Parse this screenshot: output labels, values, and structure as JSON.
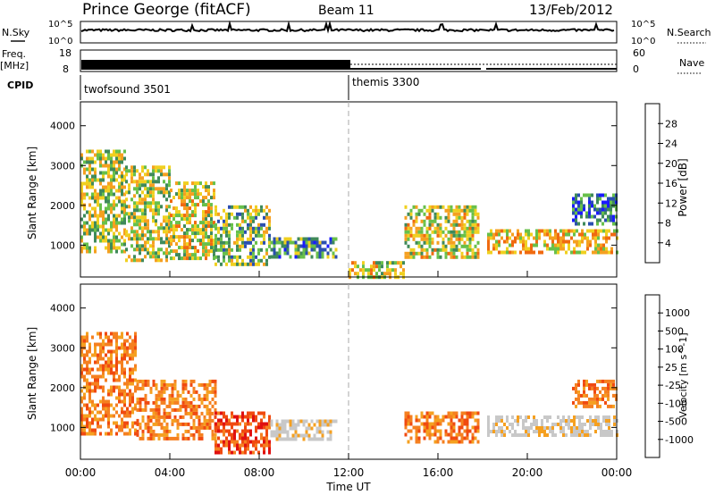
{
  "header": {
    "station": "Prince George (fitACF)",
    "beam": "Beam 11",
    "date": "13/Feb/2012"
  },
  "strip_labels": {
    "nsky": "N.Sky",
    "nsky_ticks": [
      "10^5",
      "10^0"
    ],
    "nsearch": "N.Search",
    "nsearch_ticks": [
      "10^5",
      "10^0"
    ],
    "freq": "Freq.",
    "freq_unit": "[MHz]",
    "freq_ticks": [
      "18",
      "8"
    ],
    "nave": "Nave",
    "nave_ticks": [
      "60",
      "0"
    ],
    "cpid": "CPID"
  },
  "cpid_segments": [
    {
      "label": "twofsound 3501",
      "start_hour": 0
    },
    {
      "label": "themis 3300",
      "start_hour": 12
    }
  ],
  "colors": {
    "power": [
      "#1a1aff",
      "#2a4fb0",
      "#3f8a5a",
      "#68c04a",
      "#f0d020",
      "#f5a020",
      "#f06a10",
      "#e01010"
    ],
    "velocity": [
      "#e01010",
      "#f04a10",
      "#f58020",
      "#f5a020",
      "#c8c8c8",
      "#c8c8c8",
      "#68c04a",
      "#3a9a50",
      "#2a5ab0",
      "#1a3aa0"
    ]
  },
  "chart_data": [
    {
      "type": "heatmap",
      "title": "Power",
      "xlabel": "Time UT",
      "ylabel": "Slant Range [km]",
      "xlim": [
        0,
        24
      ],
      "ylim": [
        200,
        4600
      ],
      "x_ticks": [
        "00:00",
        "04:00",
        "08:00",
        "12:00",
        "16:00",
        "20:00",
        "00:00"
      ],
      "y_ticks": [
        1000,
        2000,
        3000,
        4000
      ],
      "colorbar_label": "Power [dB]",
      "colorbar_ticks": [
        "4",
        "8",
        "12",
        "16",
        "20",
        "24",
        "28"
      ],
      "colorbar_range": [
        0,
        32
      ],
      "data_gap_hours": [
        17.8,
        18.2
      ],
      "regions": [
        {
          "t": [
            0.0,
            2.0
          ],
          "r": [
            800,
            3400
          ],
          "v": 18
        },
        {
          "t": [
            2.0,
            4.0
          ],
          "r": [
            600,
            3000
          ],
          "v": 18
        },
        {
          "t": [
            4.0,
            6.0
          ],
          "r": [
            700,
            2600
          ],
          "v": 20
        },
        {
          "t": [
            6.0,
            8.5
          ],
          "r": [
            500,
            2000
          ],
          "v": 16
        },
        {
          "t": [
            8.5,
            11.5
          ],
          "r": [
            700,
            1200
          ],
          "v": 12
        },
        {
          "t": [
            12.0,
            14.5
          ],
          "r": [
            200,
            600
          ],
          "v": 20
        },
        {
          "t": [
            14.5,
            17.8
          ],
          "r": [
            700,
            2000
          ],
          "v": 20
        },
        {
          "t": [
            18.2,
            24.0
          ],
          "r": [
            800,
            1400
          ],
          "v": 22
        },
        {
          "t": [
            22.0,
            24.0
          ],
          "r": [
            1500,
            2300
          ],
          "v": 10
        }
      ]
    },
    {
      "type": "heatmap",
      "title": "Velocity",
      "xlabel": "Time UT",
      "ylabel": "Slant Range [km]",
      "xlim": [
        0,
        24
      ],
      "ylim": [
        200,
        4600
      ],
      "x_ticks": [
        "00:00",
        "04:00",
        "08:00",
        "12:00",
        "16:00",
        "20:00",
        "00:00"
      ],
      "y_ticks": [
        1000,
        2000,
        3000,
        4000
      ],
      "colorbar_label": "Velocity [m s^-1]",
      "colorbar_ticks": [
        "1000",
        "500",
        "100",
        "25",
        "-25",
        "-100",
        "-500",
        "-1000"
      ],
      "regions": [
        {
          "t": [
            0.0,
            2.5
          ],
          "r": [
            800,
            3400
          ],
          "v": -100
        },
        {
          "t": [
            2.5,
            6.0
          ],
          "r": [
            700,
            2200
          ],
          "v": -100
        },
        {
          "t": [
            6.0,
            8.5
          ],
          "r": [
            400,
            1400
          ],
          "v": -500
        },
        {
          "t": [
            8.5,
            11.5
          ],
          "r": [
            700,
            1200
          ],
          "v": 0
        },
        {
          "t": [
            14.5,
            17.8
          ],
          "r": [
            600,
            1400
          ],
          "v": -100
        },
        {
          "t": [
            18.2,
            24.0
          ],
          "r": [
            800,
            1300
          ],
          "v": 0
        },
        {
          "t": [
            22.0,
            24.0
          ],
          "r": [
            1500,
            2200
          ],
          "v": -100
        }
      ]
    }
  ]
}
